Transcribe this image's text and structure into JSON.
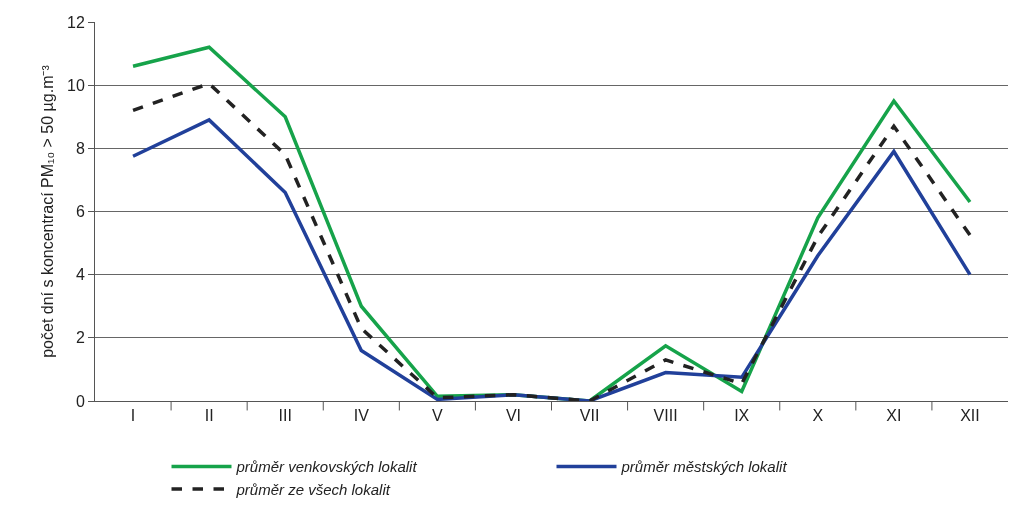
{
  "chart_data": {
    "type": "line",
    "ylabel": "počet dní s koncentrací PM₁₀ > 50 µg.m⁻³",
    "categories": [
      "I",
      "II",
      "III",
      "IV",
      "V",
      "VI",
      "VII",
      "VIII",
      "IX",
      "X",
      "XI",
      "XII"
    ],
    "series": [
      {
        "name": "průměr venkovských lokalit",
        "color": "#16a34a",
        "line_style": "solid",
        "values": [
          10.6,
          11.2,
          9.0,
          3.0,
          0.15,
          0.2,
          0,
          1.75,
          0.3,
          5.8,
          9.5,
          6.3
        ]
      },
      {
        "name": "průměr městských lokalit",
        "color": "#21409a",
        "line_style": "solid",
        "values": [
          7.75,
          8.9,
          6.6,
          1.6,
          0.05,
          0.2,
          0,
          0.9,
          0.75,
          4.6,
          7.9,
          4.0
        ]
      },
      {
        "name": "průměr ze všech lokalit",
        "color": "#222222",
        "line_style": "dashed",
        "values": [
          9.2,
          10.05,
          7.8,
          2.3,
          0.1,
          0.2,
          0,
          1.3,
          0.55,
          5.2,
          8.7,
          5.25
        ]
      }
    ],
    "ylim": [
      0,
      12
    ],
    "yticks": [
      0,
      2,
      4,
      6,
      8,
      10,
      12
    ],
    "grid": "y",
    "legend": "bottom",
    "marker": "none"
  }
}
